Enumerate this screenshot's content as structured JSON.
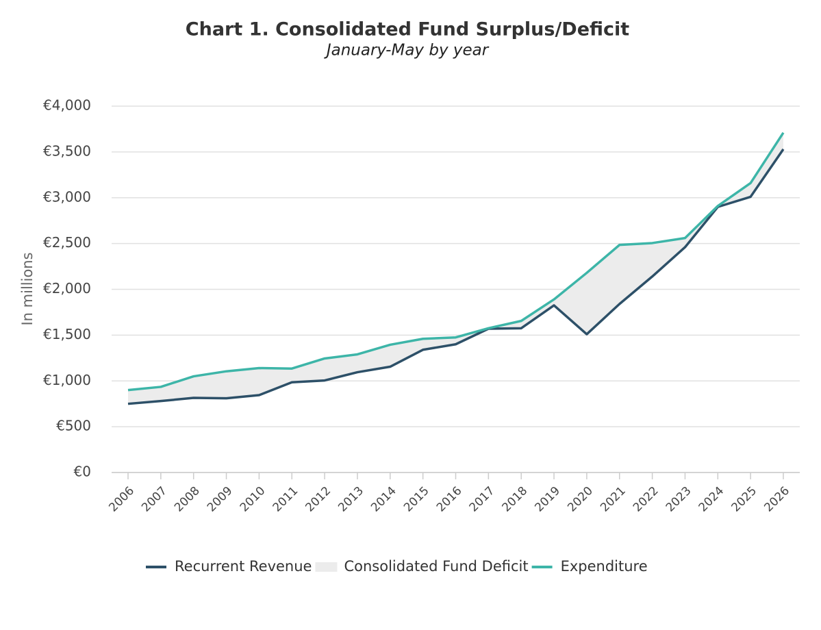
{
  "chart_data": {
    "type": "line",
    "title": "Chart 1. Consolidated Fund Surplus/Deficit",
    "subtitle": "January-May by year",
    "y_label": "In millions",
    "categories": [
      "2006",
      "2007",
      "2008",
      "2009",
      "2010",
      "2011",
      "2012",
      "2013",
      "2014",
      "2015",
      "2016",
      "2017",
      "2018",
      "2019",
      "2020",
      "2021",
      "2022",
      "2023",
      "2024",
      "2025",
      "2026"
    ],
    "series": [
      {
        "name": "Recurrent Revenue",
        "type": "line",
        "color": "#2d5068",
        "values": [
          750,
          780,
          815,
          810,
          845,
          985,
          1005,
          1095,
          1155,
          1340,
          1400,
          1570,
          1575,
          1825,
          1510,
          1840,
          2140,
          2460,
          2900,
          3010,
          3530
        ]
      },
      {
        "name": "Consolidated Fund Deficit",
        "type": "arearange",
        "color": "#ececec"
      },
      {
        "name": "Expenditure",
        "type": "line",
        "color": "#3db5a8",
        "values": [
          900,
          935,
          1050,
          1105,
          1140,
          1135,
          1245,
          1290,
          1395,
          1460,
          1475,
          1575,
          1655,
          1890,
          2180,
          2485,
          2505,
          2560,
          2910,
          3160,
          3710
        ]
      }
    ],
    "ylim": [
      0,
      4000
    ],
    "yticks": [
      {
        "value": 0,
        "label": "€0"
      },
      {
        "value": 500,
        "label": "€500"
      },
      {
        "value": 1000,
        "label": "€1,000"
      },
      {
        "value": 1500,
        "label": "€1,500"
      },
      {
        "value": 2000,
        "label": "€2,000"
      },
      {
        "value": 2500,
        "label": "€2,500"
      },
      {
        "value": 3000,
        "label": "€3,000"
      },
      {
        "value": 3500,
        "label": "€3,500"
      },
      {
        "value": 4000,
        "label": "€4,000"
      }
    ],
    "grid": true
  }
}
